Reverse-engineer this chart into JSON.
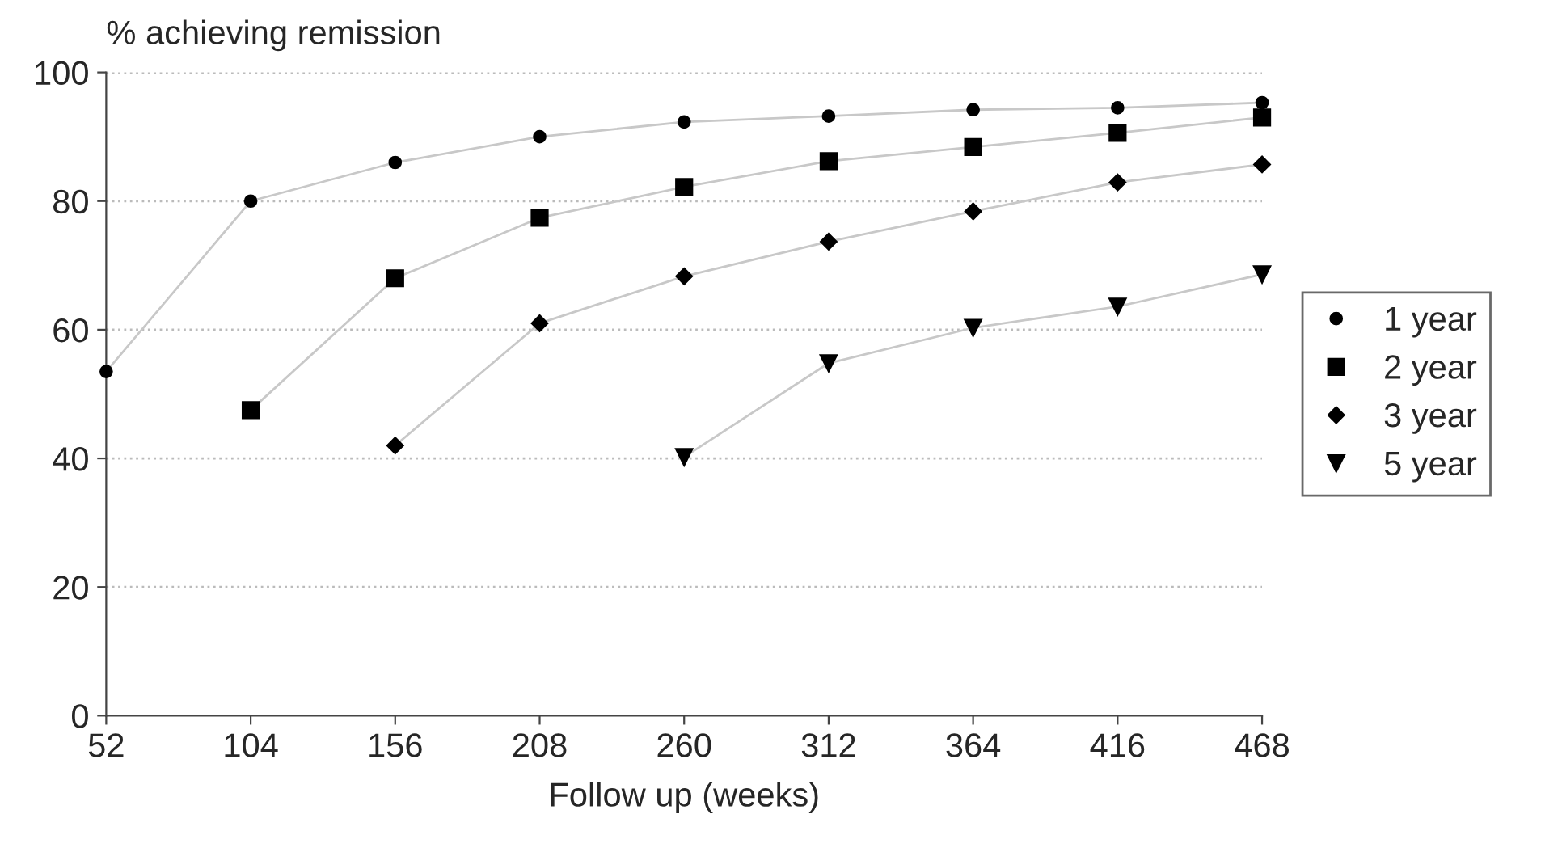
{
  "chart_data": {
    "type": "line",
    "ylabel": "% achieving remission",
    "xlabel": "Follow up (weeks)",
    "x": [
      52,
      104,
      156,
      208,
      260,
      312,
      364,
      416,
      468
    ],
    "series": [
      {
        "name": "1 year",
        "color": "#000000",
        "marker": "circle",
        "values": [
          53.5,
          80,
          86,
          90,
          92.3,
          93.2,
          94.2,
          94.5,
          95.3
        ]
      },
      {
        "name": "2 year",
        "color": "#000000",
        "marker": "square",
        "values": [
          null,
          47.5,
          68,
          77.4,
          82.2,
          86.2,
          88.4,
          90.6,
          93
        ]
      },
      {
        "name": "3 year",
        "color": "#000000",
        "marker": "diamond",
        "values": [
          null,
          null,
          42,
          61,
          68.3,
          73.7,
          78.4,
          82.9,
          85.7
        ]
      },
      {
        "name": "5 year",
        "color": "#000000",
        "marker": "triangle",
        "values": [
          null,
          null,
          null,
          null,
          40.2,
          54.8,
          60.3,
          63.6,
          68.6
        ]
      }
    ],
    "xlim": [
      52,
      468
    ],
    "ylim": [
      0,
      100
    ],
    "xticks": [
      52,
      104,
      156,
      208,
      260,
      312,
      364,
      416,
      468
    ],
    "yticks": [
      0,
      20,
      40,
      60,
      80,
      100
    ],
    "grid": "y",
    "legend": "right",
    "line_style": "solid"
  }
}
